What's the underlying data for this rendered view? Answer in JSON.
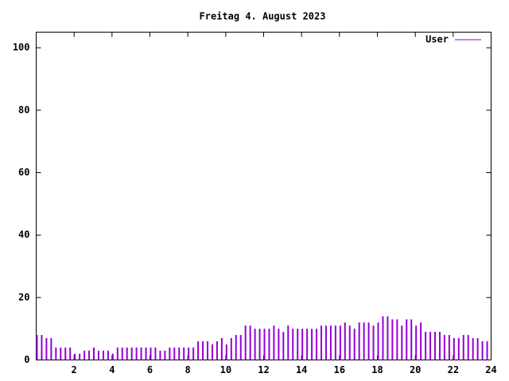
{
  "chart_data": {
    "type": "impulses",
    "title": "Freitag 4. August 2023",
    "x": [
      0,
      0.25,
      0.5,
      0.75,
      1,
      1.25,
      1.5,
      1.75,
      2,
      2.25,
      2.5,
      2.75,
      3,
      3.25,
      3.5,
      3.75,
      4,
      4.25,
      4.5,
      4.75,
      5,
      5.25,
      5.5,
      5.75,
      6,
      6.25,
      6.5,
      6.75,
      7,
      7.25,
      7.5,
      7.75,
      8,
      8.25,
      8.5,
      8.75,
      9,
      9.25,
      9.5,
      9.75,
      10,
      10.25,
      10.5,
      10.75,
      11,
      11.25,
      11.5,
      11.75,
      12,
      12.25,
      12.5,
      12.75,
      13,
      13.25,
      13.5,
      13.75,
      14,
      14.25,
      14.5,
      14.75,
      15,
      15.25,
      15.5,
      15.75,
      16,
      16.25,
      16.5,
      16.75,
      17,
      17.25,
      17.5,
      17.75,
      18,
      18.25,
      18.5,
      18.75,
      19,
      19.25,
      19.5,
      19.75,
      20,
      20.25,
      20.5,
      20.75,
      21,
      21.25,
      21.5,
      21.75,
      22,
      22.25,
      22.5,
      22.75,
      23,
      23.25,
      23.5,
      23.75
    ],
    "series": [
      {
        "name": "User",
        "color": "#9400d3",
        "values": [
          8,
          8,
          7,
          7,
          4,
          4,
          4,
          4,
          2,
          2,
          3,
          3,
          4,
          3,
          3,
          3,
          2,
          4,
          4,
          4,
          4,
          4,
          4,
          4,
          4,
          4,
          3,
          3,
          4,
          4,
          4,
          4,
          4,
          4,
          6,
          6,
          6,
          5,
          6,
          7,
          5,
          7,
          8,
          8,
          11,
          11,
          10,
          10,
          10,
          10,
          11,
          10,
          9,
          11,
          10,
          10,
          10,
          10,
          10,
          10,
          11,
          11,
          11,
          11,
          11,
          12,
          11,
          10,
          12,
          12,
          12,
          11,
          12,
          14,
          14,
          13,
          13,
          11,
          13,
          13,
          11,
          12,
          9,
          9,
          9,
          9,
          8,
          8,
          7,
          7,
          8,
          8,
          7,
          7,
          6,
          6
        ]
      }
    ],
    "xlim": [
      0,
      24
    ],
    "xticks": [
      2,
      4,
      6,
      8,
      10,
      12,
      14,
      16,
      18,
      20,
      22,
      24
    ],
    "ylim": [
      0,
      105
    ],
    "yticks": [
      0,
      20,
      40,
      60,
      80,
      100
    ],
    "legend": "top-right"
  }
}
